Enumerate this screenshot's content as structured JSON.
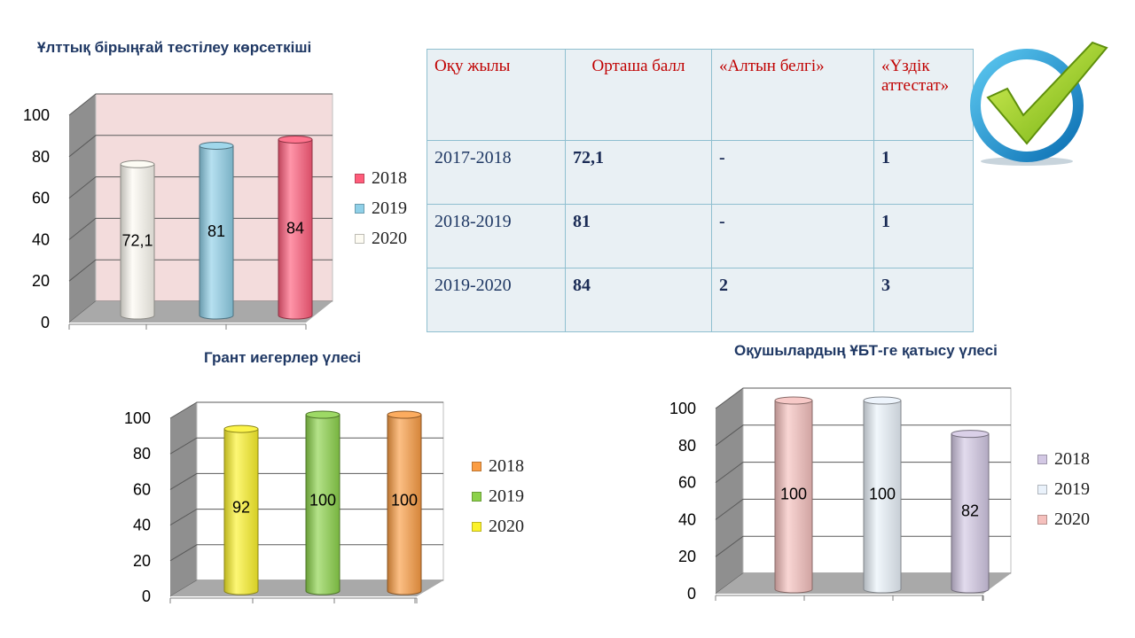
{
  "colors": {
    "title": "#1f3864",
    "table_header": "#c00000",
    "table_text": "#1f3864",
    "table_bg": "#e9f0f4",
    "table_border": "#8fbfd0",
    "checkmark": "#9acd1f",
    "checkmark_ring": "#1a9fd9"
  },
  "icons": {
    "checkmark": "check-badge-icon"
  },
  "table": {
    "headers": [
      "Оқу жылы",
      "Орташа балл",
      "«Алтын белгі»",
      "«Үздік аттестат»"
    ],
    "rows": [
      [
        "2017-2018",
        "72,1",
        "-",
        "1"
      ],
      [
        "2018-2019",
        "81",
        "-",
        "1"
      ],
      [
        "2019-2020",
        "84",
        "2",
        "3"
      ]
    ]
  },
  "chart_data": [
    {
      "type": "bar",
      "title": "Ұлттық бірыңғай тестілеу көрсеткіші",
      "ylim": [
        0,
        100
      ],
      "yticks": [
        "0",
        "20",
        "40",
        "60",
        "80",
        "100"
      ],
      "grid": true,
      "legend_placement": "right",
      "bars": [
        {
          "value": 72.1,
          "label": "72,1",
          "color": "#fdfbf2"
        },
        {
          "value": 81,
          "label": "81",
          "color": "#8fd0e8"
        },
        {
          "value": 84,
          "label": "84",
          "color": "#ff5c7a"
        }
      ],
      "legend": [
        {
          "name": "2018",
          "color": "#ff5c7a"
        },
        {
          "name": "2019",
          "color": "#8fd0e8"
        },
        {
          "name": "2020",
          "color": "#fdfbf2"
        }
      ],
      "wall_color": "#f3dcdc"
    },
    {
      "type": "bar",
      "title": "Грант иегерлер үлесі",
      "ylim": [
        0,
        100
      ],
      "yticks": [
        "0",
        "20",
        "40",
        "60",
        "80",
        "100"
      ],
      "grid": true,
      "legend_placement": "right",
      "bars": [
        {
          "value": 92,
          "label": "92",
          "color": "#fcf22a"
        },
        {
          "value": 100,
          "label": "100",
          "color": "#8cd24a"
        },
        {
          "value": 100,
          "label": "100",
          "color": "#fb9d43"
        }
      ],
      "legend": [
        {
          "name": "2018",
          "color": "#fb9d43"
        },
        {
          "name": "2019",
          "color": "#8cd24a"
        },
        {
          "name": "2020",
          "color": "#fcf22a"
        }
      ],
      "wall_color": "#ffffff"
    },
    {
      "type": "bar",
      "title": "Оқушылардың ҰБТ-ге қатысу үлесі",
      "ylim": [
        0,
        100
      ],
      "yticks": [
        "0",
        "20",
        "40",
        "60",
        "80",
        "100"
      ],
      "grid": true,
      "legend_placement": "right",
      "bars": [
        {
          "value": 100,
          "label": "100",
          "color": "#f5c0bd"
        },
        {
          "value": 100,
          "label": "100",
          "color": "#eaf2fb"
        },
        {
          "value": 82,
          "label": "82",
          "color": "#d3c8e4"
        }
      ],
      "legend": [
        {
          "name": "2018",
          "color": "#d3c8e4"
        },
        {
          "name": "2019",
          "color": "#eaf2fb"
        },
        {
          "name": "2020",
          "color": "#f5c0bd"
        }
      ],
      "wall_color": "#ffffff"
    }
  ]
}
